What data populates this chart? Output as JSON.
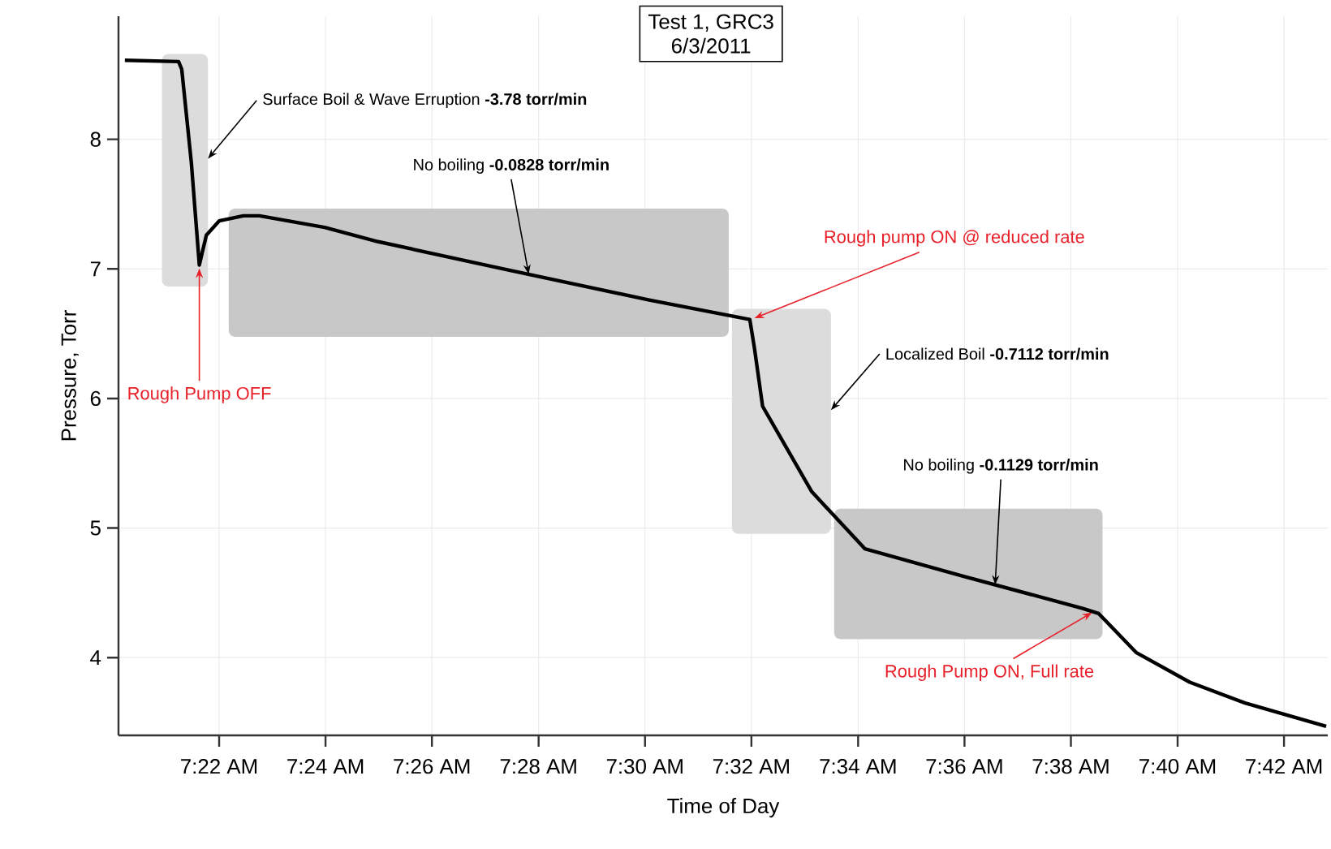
{
  "chart_data": {
    "type": "line",
    "title": "Test 1, GRC3",
    "subtitle": "6/3/2011",
    "xlabel": "Time of Day",
    "ylabel": "Pressure, Torr",
    "x": [
      7.3372,
      7.354,
      7.355,
      7.358,
      7.3605,
      7.3627,
      7.3667,
      7.3743,
      7.3793,
      7.3997,
      7.4165,
      7.4557,
      7.5013,
      7.5328,
      7.5343,
      7.5368,
      7.5522,
      7.5688,
      7.5993,
      7.637,
      7.642,
      7.6537,
      7.6705,
      7.6878,
      7.7132
    ],
    "series": [
      {
        "color": "#000000",
        "values": [
          8.61,
          8.6,
          8.54,
          7.82,
          7.03,
          7.26,
          7.37,
          7.41,
          7.41,
          7.32,
          7.21,
          7.0,
          6.76,
          6.61,
          6.38,
          5.94,
          5.28,
          4.84,
          4.63,
          4.38,
          4.34,
          4.04,
          3.81,
          3.65,
          3.47
        ]
      }
    ],
    "xlim": [
      7.3352,
      7.7137
    ],
    "ylim": [
      3.4,
      8.95
    ],
    "xticks": [
      {
        "value": 7.3667,
        "label": "7:22 AM"
      },
      {
        "value": 7.4,
        "label": "7:24 AM"
      },
      {
        "value": 7.4333,
        "label": "7:26 AM"
      },
      {
        "value": 7.4667,
        "label": "7:28 AM"
      },
      {
        "value": 7.5,
        "label": "7:30 AM"
      },
      {
        "value": 7.5333,
        "label": "7:32 AM"
      },
      {
        "value": 7.5667,
        "label": "7:34 AM"
      },
      {
        "value": 7.6,
        "label": "7:36 AM"
      },
      {
        "value": 7.6333,
        "label": "7:38 AM"
      },
      {
        "value": 7.6667,
        "label": "7:40 AM"
      },
      {
        "value": 7.7,
        "label": "7:42 AM"
      }
    ],
    "yticks": [
      4,
      5,
      6,
      7,
      8
    ],
    "bands": [
      {
        "axis": "x",
        "from": 7.3488,
        "to": 7.3632,
        "label": "Surface Boil & Wave Erruption **-3.78 torr/min**",
        "color": "#dcdcdc"
      },
      {
        "axis": "x",
        "from": 7.3697,
        "to": 7.5262,
        "label": "No boiling **-0.0828 torr/min**",
        "color": "#c8c8c8"
      },
      {
        "axis": "x",
        "from": 7.5272,
        "to": 7.5582,
        "label": "Localized Boil **-0.7112 torr/min**",
        "color": "#dcdcdc"
      },
      {
        "axis": "x",
        "from": 7.5592,
        "to": 7.6432,
        "label": "No boiling **-0.1129 torr/min**",
        "color": "#c8c8c8"
      }
    ],
    "annotations": [
      {
        "text": "Rough Pump OFF",
        "x": 7.3605,
        "y": 7.03
      },
      {
        "text": "Rough pump ON @ reduced rate",
        "x": 7.5333,
        "y": 6.61
      },
      {
        "text": "Rough Pump ON, Full rate",
        "x": 7.6408,
        "y": 4.36
      }
    ],
    "grid": true,
    "marker": "none",
    "line_style": "solid"
  }
}
